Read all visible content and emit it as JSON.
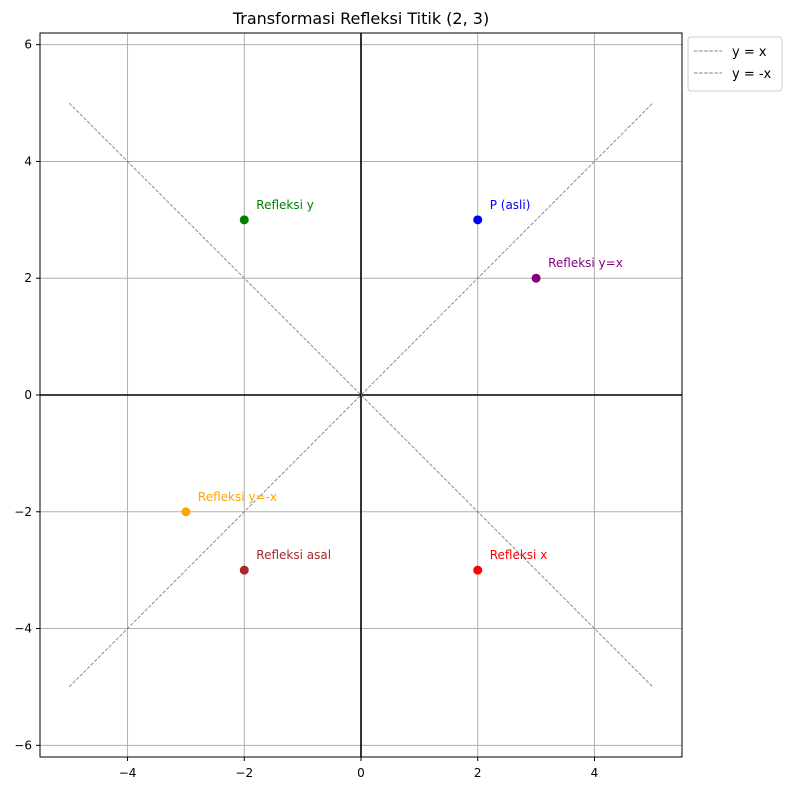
{
  "chart_data": {
    "type": "scatter",
    "title": "Transformasi Refleksi Titik (2, 3)",
    "xlabel": "",
    "ylabel": "",
    "xlim": [
      -5.5,
      5.5
    ],
    "ylim": [
      -6.2,
      6.2
    ],
    "xticks": [
      -4,
      -2,
      0,
      2,
      4
    ],
    "yticks": [
      -6,
      -4,
      -2,
      0,
      2,
      4,
      6
    ],
    "xtick_labels": [
      "−4",
      "−2",
      "0",
      "2",
      "4"
    ],
    "ytick_labels": [
      "−6",
      "−4",
      "−2",
      "0",
      "2",
      "4",
      "6"
    ],
    "grid": true,
    "axis_lines": {
      "color": "#000000",
      "at_x": 0,
      "at_y": 0
    },
    "legend_position": "outside-top-right",
    "lines": [
      {
        "name": "y = x",
        "x": [
          -5,
          5
        ],
        "y": [
          -5,
          5
        ],
        "color": "#808080",
        "style": "dashed"
      },
      {
        "name": "y = -x",
        "x": [
          -5,
          5
        ],
        "y": [
          5,
          -5
        ],
        "color": "#808080",
        "style": "dashed"
      }
    ],
    "points": [
      {
        "label": "P (asli)",
        "x": 2,
        "y": 3,
        "color": "#0000ff"
      },
      {
        "label": "Refleksi x",
        "x": 2,
        "y": -3,
        "color": "#ff0000"
      },
      {
        "label": "Refleksi y",
        "x": -2,
        "y": 3,
        "color": "#008000"
      },
      {
        "label": "Refleksi asal",
        "x": -2,
        "y": -3,
        "color": "#a52a2a"
      },
      {
        "label": "Refleksi y=x",
        "x": 3,
        "y": 2,
        "color": "#800080"
      },
      {
        "label": "Refleksi y=-x",
        "x": -3,
        "y": -2,
        "color": "#ffa500"
      }
    ]
  }
}
